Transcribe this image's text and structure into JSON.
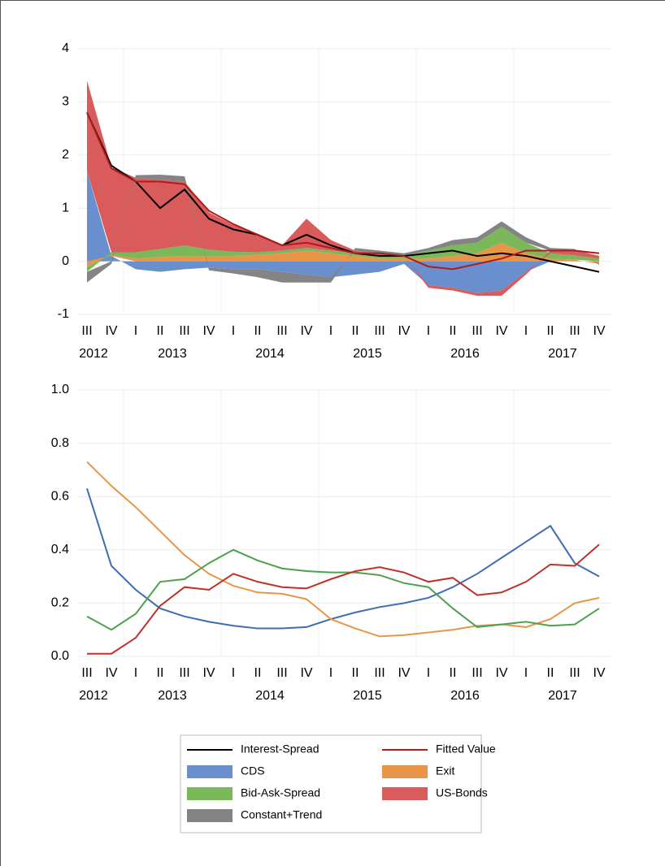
{
  "chart_data": [
    {
      "type": "stacked_area_line",
      "categories": [
        "III",
        "IV",
        "I",
        "II",
        "III",
        "IV",
        "I",
        "II",
        "III",
        "IV",
        "I",
        "II",
        "III",
        "IV",
        "I",
        "II",
        "III",
        "IV",
        "I",
        "II",
        "III",
        "IV"
      ],
      "years": [
        "2012",
        "2013",
        "2014",
        "2015",
        "2016",
        "2017"
      ],
      "ylim": [
        -1,
        4
      ],
      "yticks": [
        -1,
        0,
        1,
        2,
        3,
        4
      ],
      "grid": true,
      "series": [
        {
          "name": "Interest-Spread",
          "kind": "line",
          "color": "#000000",
          "values": [
            2.8,
            1.8,
            1.5,
            1.0,
            1.35,
            0.8,
            0.6,
            0.5,
            0.3,
            0.5,
            0.3,
            0.15,
            0.1,
            0.1,
            0.15,
            0.2,
            0.1,
            0.15,
            0.1,
            0.0,
            -0.1,
            -0.2
          ]
        },
        {
          "name": "Fitted Value",
          "kind": "line",
          "color": "#b01c1c",
          "values": [
            2.8,
            1.75,
            1.5,
            1.5,
            1.45,
            0.95,
            0.7,
            0.5,
            0.3,
            0.35,
            0.25,
            0.15,
            0.15,
            0.1,
            -0.1,
            -0.15,
            -0.05,
            0.05,
            0.2,
            0.2,
            0.2,
            0.15
          ]
        },
        {
          "name": "CDS",
          "kind": "area",
          "color": "#6a8fcf",
          "values": [
            1.7,
            0.1,
            -0.15,
            -0.2,
            -0.15,
            -0.12,
            -0.15,
            -0.15,
            -0.2,
            -0.25,
            -0.3,
            -0.25,
            -0.2,
            -0.05,
            -0.45,
            -0.5,
            -0.6,
            -0.55,
            -0.2,
            0,
            0,
            0
          ]
        },
        {
          "name": "Exit",
          "kind": "area",
          "color": "#e8954a",
          "values": [
            -0.1,
            0.02,
            0.05,
            0.08,
            0.1,
            0.1,
            0.1,
            0.12,
            0.15,
            0.2,
            0.15,
            0.1,
            0.05,
            0.05,
            0.05,
            0.1,
            0.15,
            0.35,
            0.15,
            0.05,
            0.03,
            -0.05
          ]
        },
        {
          "name": "Bid-Ask-Spread",
          "kind": "area",
          "color": "#7ab85a",
          "values": [
            -0.1,
            0.05,
            0.12,
            0.15,
            0.2,
            0.12,
            0.08,
            0.05,
            0.05,
            0.05,
            0.05,
            0.05,
            0.05,
            0.05,
            0.15,
            0.2,
            0.2,
            0.3,
            0.2,
            0.1,
            0.08,
            0.05
          ]
        },
        {
          "name": "US-Bonds",
          "kind": "area",
          "color": "#d95b5b",
          "values": [
            1.7,
            1.6,
            1.4,
            1.3,
            1.2,
            0.7,
            0.5,
            0.35,
            0.1,
            0.55,
            0.2,
            0.05,
            0.05,
            0.0,
            -0.05,
            -0.05,
            -0.05,
            -0.1,
            -0.05,
            0.05,
            0.1,
            0.05
          ]
        },
        {
          "name": "Constant+Trend",
          "kind": "area",
          "color": "#848484",
          "values": [
            -0.2,
            -0.05,
            0.05,
            0.1,
            0.1,
            -0.05,
            -0.08,
            -0.15,
            -0.2,
            -0.15,
            -0.1,
            0.05,
            0.05,
            0.05,
            0.05,
            0.1,
            0.1,
            0.1,
            0.1,
            0.05,
            0.02,
            -0.02
          ]
        }
      ]
    },
    {
      "type": "line",
      "categories": [
        "III",
        "IV",
        "I",
        "II",
        "III",
        "IV",
        "I",
        "II",
        "III",
        "IV",
        "I",
        "II",
        "III",
        "IV",
        "I",
        "II",
        "III",
        "IV",
        "I",
        "II",
        "III",
        "IV"
      ],
      "years": [
        "2012",
        "2013",
        "2014",
        "2015",
        "2016",
        "2017"
      ],
      "ylim": [
        0,
        1
      ],
      "yticks": [
        {
          "value": 0,
          "label": "0.0"
        },
        {
          "value": 0.2,
          "label": "0.2"
        },
        {
          "value": 0.4,
          "label": "0.4"
        },
        {
          "value": 0.6,
          "label": "0.6"
        },
        {
          "value": 0.8,
          "label": "0.8"
        },
        {
          "value": 1,
          "label": "1.0"
        }
      ],
      "grid": true,
      "series": [
        {
          "color": "#3d6db5",
          "values": [
            0.63,
            0.34,
            0.25,
            0.18,
            0.15,
            0.13,
            0.115,
            0.105,
            0.105,
            0.11,
            0.14,
            0.165,
            0.185,
            0.2,
            0.22,
            0.26,
            0.31,
            0.37,
            0.43,
            0.49,
            0.35,
            0.3
          ]
        },
        {
          "color": "#e8954a",
          "values": [
            0.73,
            0.64,
            0.56,
            0.47,
            0.38,
            0.31,
            0.265,
            0.24,
            0.235,
            0.215,
            0.14,
            0.105,
            0.075,
            0.08,
            0.09,
            0.1,
            0.115,
            0.12,
            0.11,
            0.14,
            0.2,
            0.22
          ]
        },
        {
          "color": "#4ea04e",
          "values": [
            0.15,
            0.1,
            0.16,
            0.28,
            0.29,
            0.35,
            0.4,
            0.36,
            0.33,
            0.32,
            0.315,
            0.315,
            0.305,
            0.275,
            0.26,
            0.18,
            0.11,
            0.12,
            0.13,
            0.115,
            0.12,
            0.18
          ]
        },
        {
          "color": "#c0302b",
          "values": [
            0.01,
            0.01,
            0.07,
            0.19,
            0.26,
            0.25,
            0.31,
            0.28,
            0.26,
            0.255,
            0.29,
            0.32,
            0.335,
            0.315,
            0.28,
            0.295,
            0.23,
            0.24,
            0.28,
            0.345,
            0.34,
            0.42
          ]
        }
      ]
    }
  ]
}
